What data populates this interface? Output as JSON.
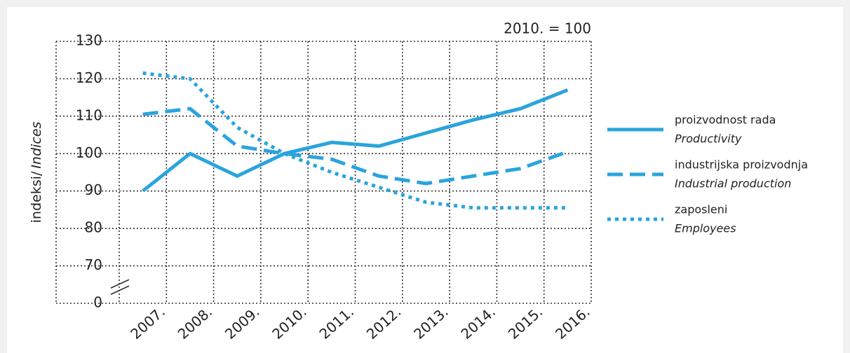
{
  "chart_data": {
    "type": "line",
    "annotation": "2010. = 100",
    "y_label": [
      "indeksi/",
      "Indices"
    ],
    "categories": [
      "2007.",
      "2008.",
      "2009.",
      "2010.",
      "2011.",
      "2012.",
      "2013.",
      "2014.",
      "2015.",
      "2016."
    ],
    "series": [
      {
        "name": "proizvodnost rada",
        "name_en": "Productivity",
        "color": "#2aa4dd",
        "dash": "solid",
        "values": [
          90,
          100,
          94,
          100,
          103,
          102,
          105.5,
          109,
          112,
          117
        ]
      },
      {
        "name": "industrijska proizvodnja",
        "name_en": "Industrial production",
        "color": "#2aa4dd",
        "dash": "dashed",
        "values": [
          110.5,
          112,
          102,
          100,
          98.5,
          94,
          92,
          94,
          96,
          100.5
        ]
      },
      {
        "name": "zaposleni",
        "name_en": "Employees",
        "color": "#2aa4dd",
        "dash": "dotted",
        "values": [
          121.5,
          120,
          107,
          100,
          95,
          91,
          87,
          85.5,
          85.5,
          85.5
        ]
      }
    ],
    "ylim": [
      0,
      130
    ],
    "yticks": [
      0,
      70,
      80,
      90,
      100,
      110,
      120,
      130
    ],
    "axis_break": true,
    "grid": true
  }
}
